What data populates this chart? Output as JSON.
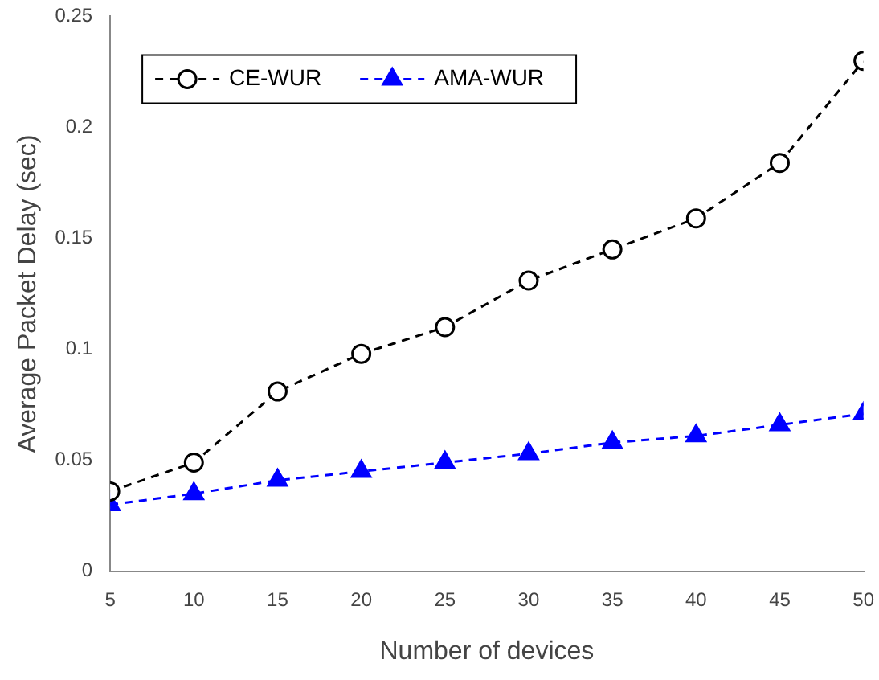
{
  "chart_data": {
    "type": "line",
    "xlabel": "Number of devices",
    "ylabel": "Average Packet Delay (sec)",
    "x": [
      5,
      10,
      15,
      20,
      25,
      30,
      35,
      40,
      45,
      50
    ],
    "series": [
      {
        "name": "CE-WUR",
        "color": "#000000",
        "marker": "circle",
        "values": [
          0.036,
          0.049,
          0.081,
          0.098,
          0.11,
          0.131,
          0.145,
          0.159,
          0.184,
          0.23
        ]
      },
      {
        "name": "AMA-WUR",
        "color": "#0000ff",
        "marker": "triangle",
        "values": [
          0.03,
          0.035,
          0.041,
          0.045,
          0.049,
          0.053,
          0.058,
          0.061,
          0.066,
          0.071
        ]
      }
    ],
    "xlim": [
      5,
      50
    ],
    "xticks": [
      5,
      10,
      15,
      20,
      25,
      30,
      35,
      40,
      45,
      50
    ],
    "ylim": [
      0,
      0.25
    ],
    "yticks": [
      0,
      0.05,
      0.1,
      0.15,
      0.2,
      0.25
    ],
    "grid": false,
    "legend": "top left",
    "line_style": "dashed"
  }
}
